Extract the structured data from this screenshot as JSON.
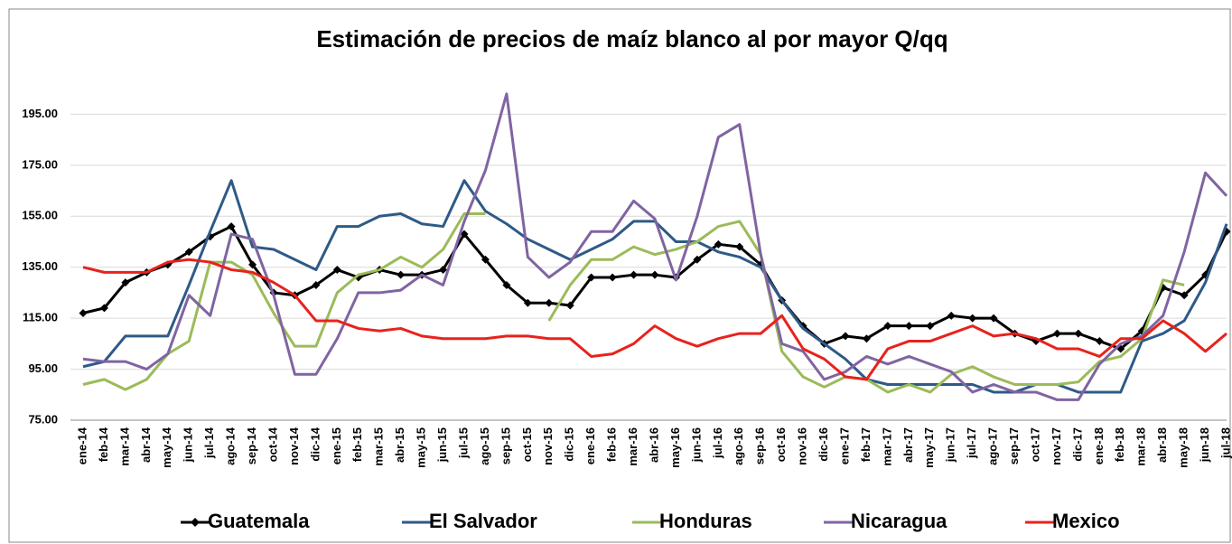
{
  "chart_data": {
    "type": "line",
    "title": "Estimación de precios de maíz blanco al por mayor  Q/qq",
    "categories": [
      "ene-14",
      "feb-14",
      "mar-14",
      "abr-14",
      "may-14",
      "jun-14",
      "jul-14",
      "ago-14",
      "sep-14",
      "oct-14",
      "nov-14",
      "dic-14",
      "ene-15",
      "feb-15",
      "mar-15",
      "abr-15",
      "may-15",
      "jun-15",
      "jul-15",
      "ago-15",
      "sep-15",
      "oct-15",
      "nov-15",
      "dic-15",
      "ene-16",
      "feb-16",
      "mar-16",
      "abr-16",
      "may-16",
      "jun-16",
      "jul-16",
      "ago-16",
      "sep-16",
      "oct-16",
      "nov-16",
      "dic-16",
      "ene-17",
      "feb-17",
      "mar-17",
      "abr-17",
      "may-17",
      "jun-17",
      "jul-17",
      "ago-17",
      "sep-17",
      "oct-17",
      "nov-17",
      "dic-17",
      "ene-18",
      "feb-18",
      "mar-18",
      "abr-18",
      "may-18",
      "jun-18",
      "jul-18"
    ],
    "series": [
      {
        "name": "Guatemala",
        "color": "#000000",
        "marker": "diamond",
        "values": [
          117,
          119,
          129,
          133,
          136,
          141,
          147,
          151,
          136,
          125,
          124,
          128,
          134,
          131,
          134,
          132,
          132,
          134,
          148,
          138,
          128,
          121,
          121,
          120,
          131,
          131,
          132,
          132,
          131,
          138,
          144,
          143,
          136,
          122,
          112,
          105,
          108,
          107,
          112,
          112,
          112,
          116,
          115,
          115,
          109,
          106,
          109,
          109,
          106,
          103,
          110,
          127,
          124,
          132,
          149
        ]
      },
      {
        "name": "El Salvador",
        "color": "#2e5a87",
        "values": [
          96,
          98,
          108,
          108,
          108,
          128,
          149,
          169,
          143,
          142,
          138,
          134,
          151,
          151,
          155,
          156,
          152,
          151,
          169,
          157,
          152,
          146,
          142,
          138,
          142,
          146,
          153,
          153,
          145,
          145,
          141,
          139,
          135,
          122,
          111,
          105,
          99,
          91,
          89,
          89,
          89,
          89,
          89,
          86,
          86,
          89,
          89,
          86,
          86,
          86,
          106,
          109,
          114,
          129,
          152
        ]
      },
      {
        "name": "Honduras",
        "color": "#9bbb59",
        "values": [
          89,
          91,
          87,
          91,
          101,
          106,
          137,
          137,
          132,
          117,
          104,
          104,
          125,
          132,
          134,
          139,
          135,
          142,
          156,
          156,
          null,
          null,
          114,
          128,
          138,
          138,
          143,
          140,
          142,
          145,
          151,
          153,
          140,
          102,
          92,
          88,
          92,
          91,
          86,
          89,
          86,
          93,
          96,
          92,
          89,
          89,
          89,
          90,
          98,
          100,
          107,
          130,
          128,
          null,
          null
        ]
      },
      {
        "name": "Nicaragua",
        "color": "#8064a2",
        "values": [
          99,
          98,
          98,
          95,
          101,
          124,
          116,
          148,
          146,
          124,
          93,
          93,
          107,
          125,
          125,
          126,
          132,
          128,
          153,
          173,
          203,
          139,
          131,
          137,
          149,
          149,
          161,
          154,
          130,
          155,
          186,
          191,
          140,
          105,
          102,
          91,
          94,
          100,
          97,
          100,
          97,
          94,
          86,
          89,
          86,
          86,
          83,
          83,
          97,
          105,
          108,
          116,
          141,
          172,
          163
        ]
      },
      {
        "name": "Mexico",
        "color": "#e8221c",
        "values": [
          135,
          133,
          133,
          133,
          137,
          138,
          137,
          134,
          133,
          129,
          124,
          114,
          114,
          111,
          110,
          111,
          108,
          107,
          107,
          107,
          108,
          108,
          107,
          107,
          100,
          101,
          105,
          112,
          107,
          104,
          107,
          109,
          109,
          116,
          103,
          99,
          92,
          91,
          103,
          106,
          106,
          109,
          112,
          108,
          109,
          107,
          103,
          103,
          100,
          107,
          107,
          114,
          109,
          102,
          109
        ]
      }
    ],
    "ylim": [
      75,
      215
    ],
    "yticks": [
      {
        "value": 75,
        "label": "75.00"
      },
      {
        "value": 95,
        "label": "95.00"
      },
      {
        "value": 115,
        "label": "115.00"
      },
      {
        "value": 135,
        "label": "135.00"
      },
      {
        "value": 155,
        "label": "155.00"
      },
      {
        "value": 175,
        "label": "175.00"
      },
      {
        "value": 195,
        "label": "195.00"
      }
    ],
    "grid": true,
    "legend": "bottom"
  }
}
